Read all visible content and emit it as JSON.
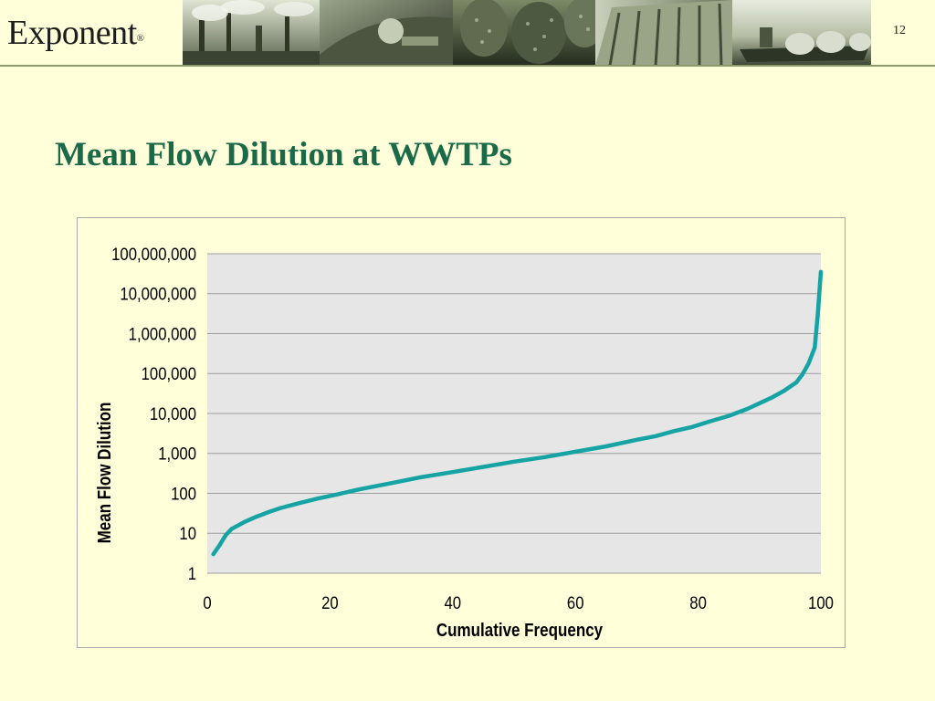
{
  "header": {
    "logo_text": "Exponent",
    "logo_mark": "®",
    "slide_number": "12"
  },
  "slide": {
    "title": "Mean Flow Dilution at WWTPs"
  },
  "chart_data": {
    "type": "line",
    "title": "",
    "xlabel": "Cumulative Frequency",
    "ylabel": "Mean Flow Dilution",
    "x_scale": "linear",
    "y_scale": "log",
    "xlim": [
      0,
      100
    ],
    "ylim": [
      1,
      100000000
    ],
    "x_ticks": [
      "0",
      "20",
      "40",
      "60",
      "80",
      "100"
    ],
    "y_ticks": [
      "1",
      "10",
      "100",
      "1,000",
      "10,000",
      "100,000",
      "1,000,000",
      "10,000,000",
      "100,000,000"
    ],
    "grid": "horizontal",
    "legend": "none",
    "colors": {
      "series": "#16a3a3",
      "plot_area": "#e6e6e6",
      "grid": "#9e9e9e"
    },
    "series": [
      {
        "x": [
          1,
          2,
          3,
          4,
          6,
          8,
          10,
          12,
          15,
          18,
          21,
          25,
          30,
          35,
          40,
          45,
          50,
          55,
          60,
          65,
          70,
          73,
          76,
          79,
          82,
          85,
          88,
          90,
          92,
          94,
          96,
          97,
          98,
          99,
          99.5,
          100
        ],
        "y": [
          3,
          5,
          9,
          13,
          19,
          26,
          34,
          43,
          57,
          74,
          93,
          128,
          180,
          256,
          340,
          460,
          620,
          810,
          1100,
          1500,
          2200,
          2700,
          3600,
          4600,
          6400,
          8700,
          13000,
          18000,
          25000,
          37000,
          60000,
          95000,
          180000,
          450000,
          3000000,
          35000000
        ]
      }
    ]
  }
}
